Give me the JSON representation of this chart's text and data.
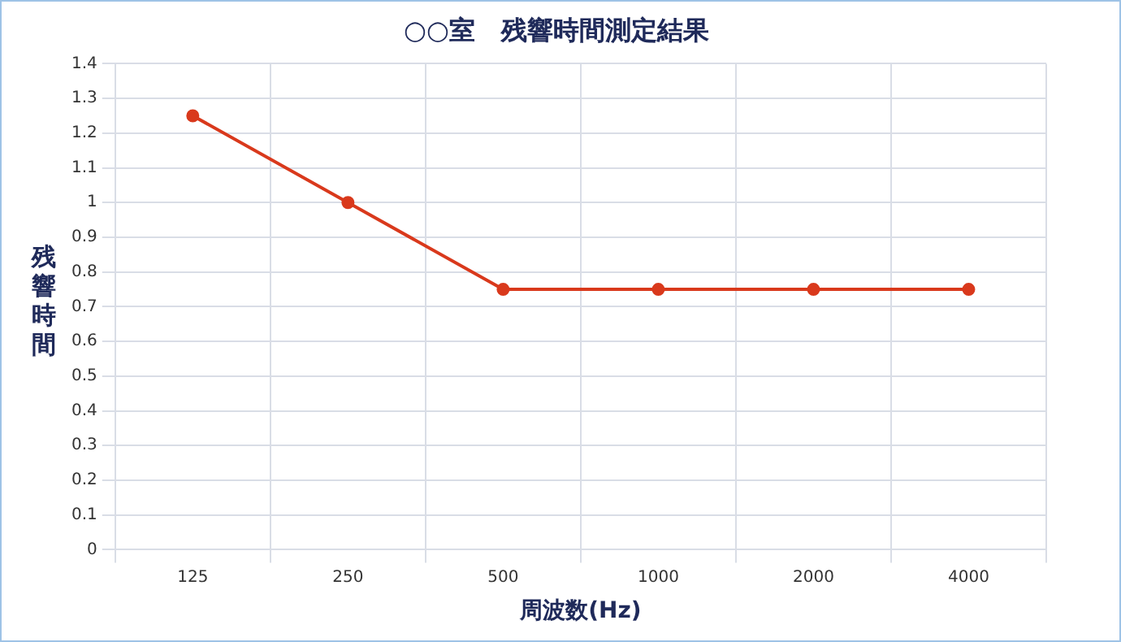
{
  "chart_data": {
    "type": "line",
    "title": "○○室　残響時間測定結果",
    "xlabel": "周波数(Hz)",
    "ylabel": "残響時間",
    "categories": [
      "125",
      "250",
      "500",
      "1000",
      "2000",
      "4000"
    ],
    "series": [
      {
        "color": "#d9391c",
        "values": [
          1.25,
          1.0,
          0.75,
          0.75,
          0.75,
          0.75
        ]
      }
    ],
    "ylim": [
      0,
      1.4
    ],
    "yticks": [
      0,
      0.1,
      0.2,
      0.3,
      0.4,
      0.5,
      0.6,
      0.7,
      0.8,
      0.9,
      1,
      1.1,
      1.2,
      1.3,
      1.4
    ],
    "grid": true,
    "legend": false,
    "marker": "circle",
    "line_style": "solid"
  }
}
